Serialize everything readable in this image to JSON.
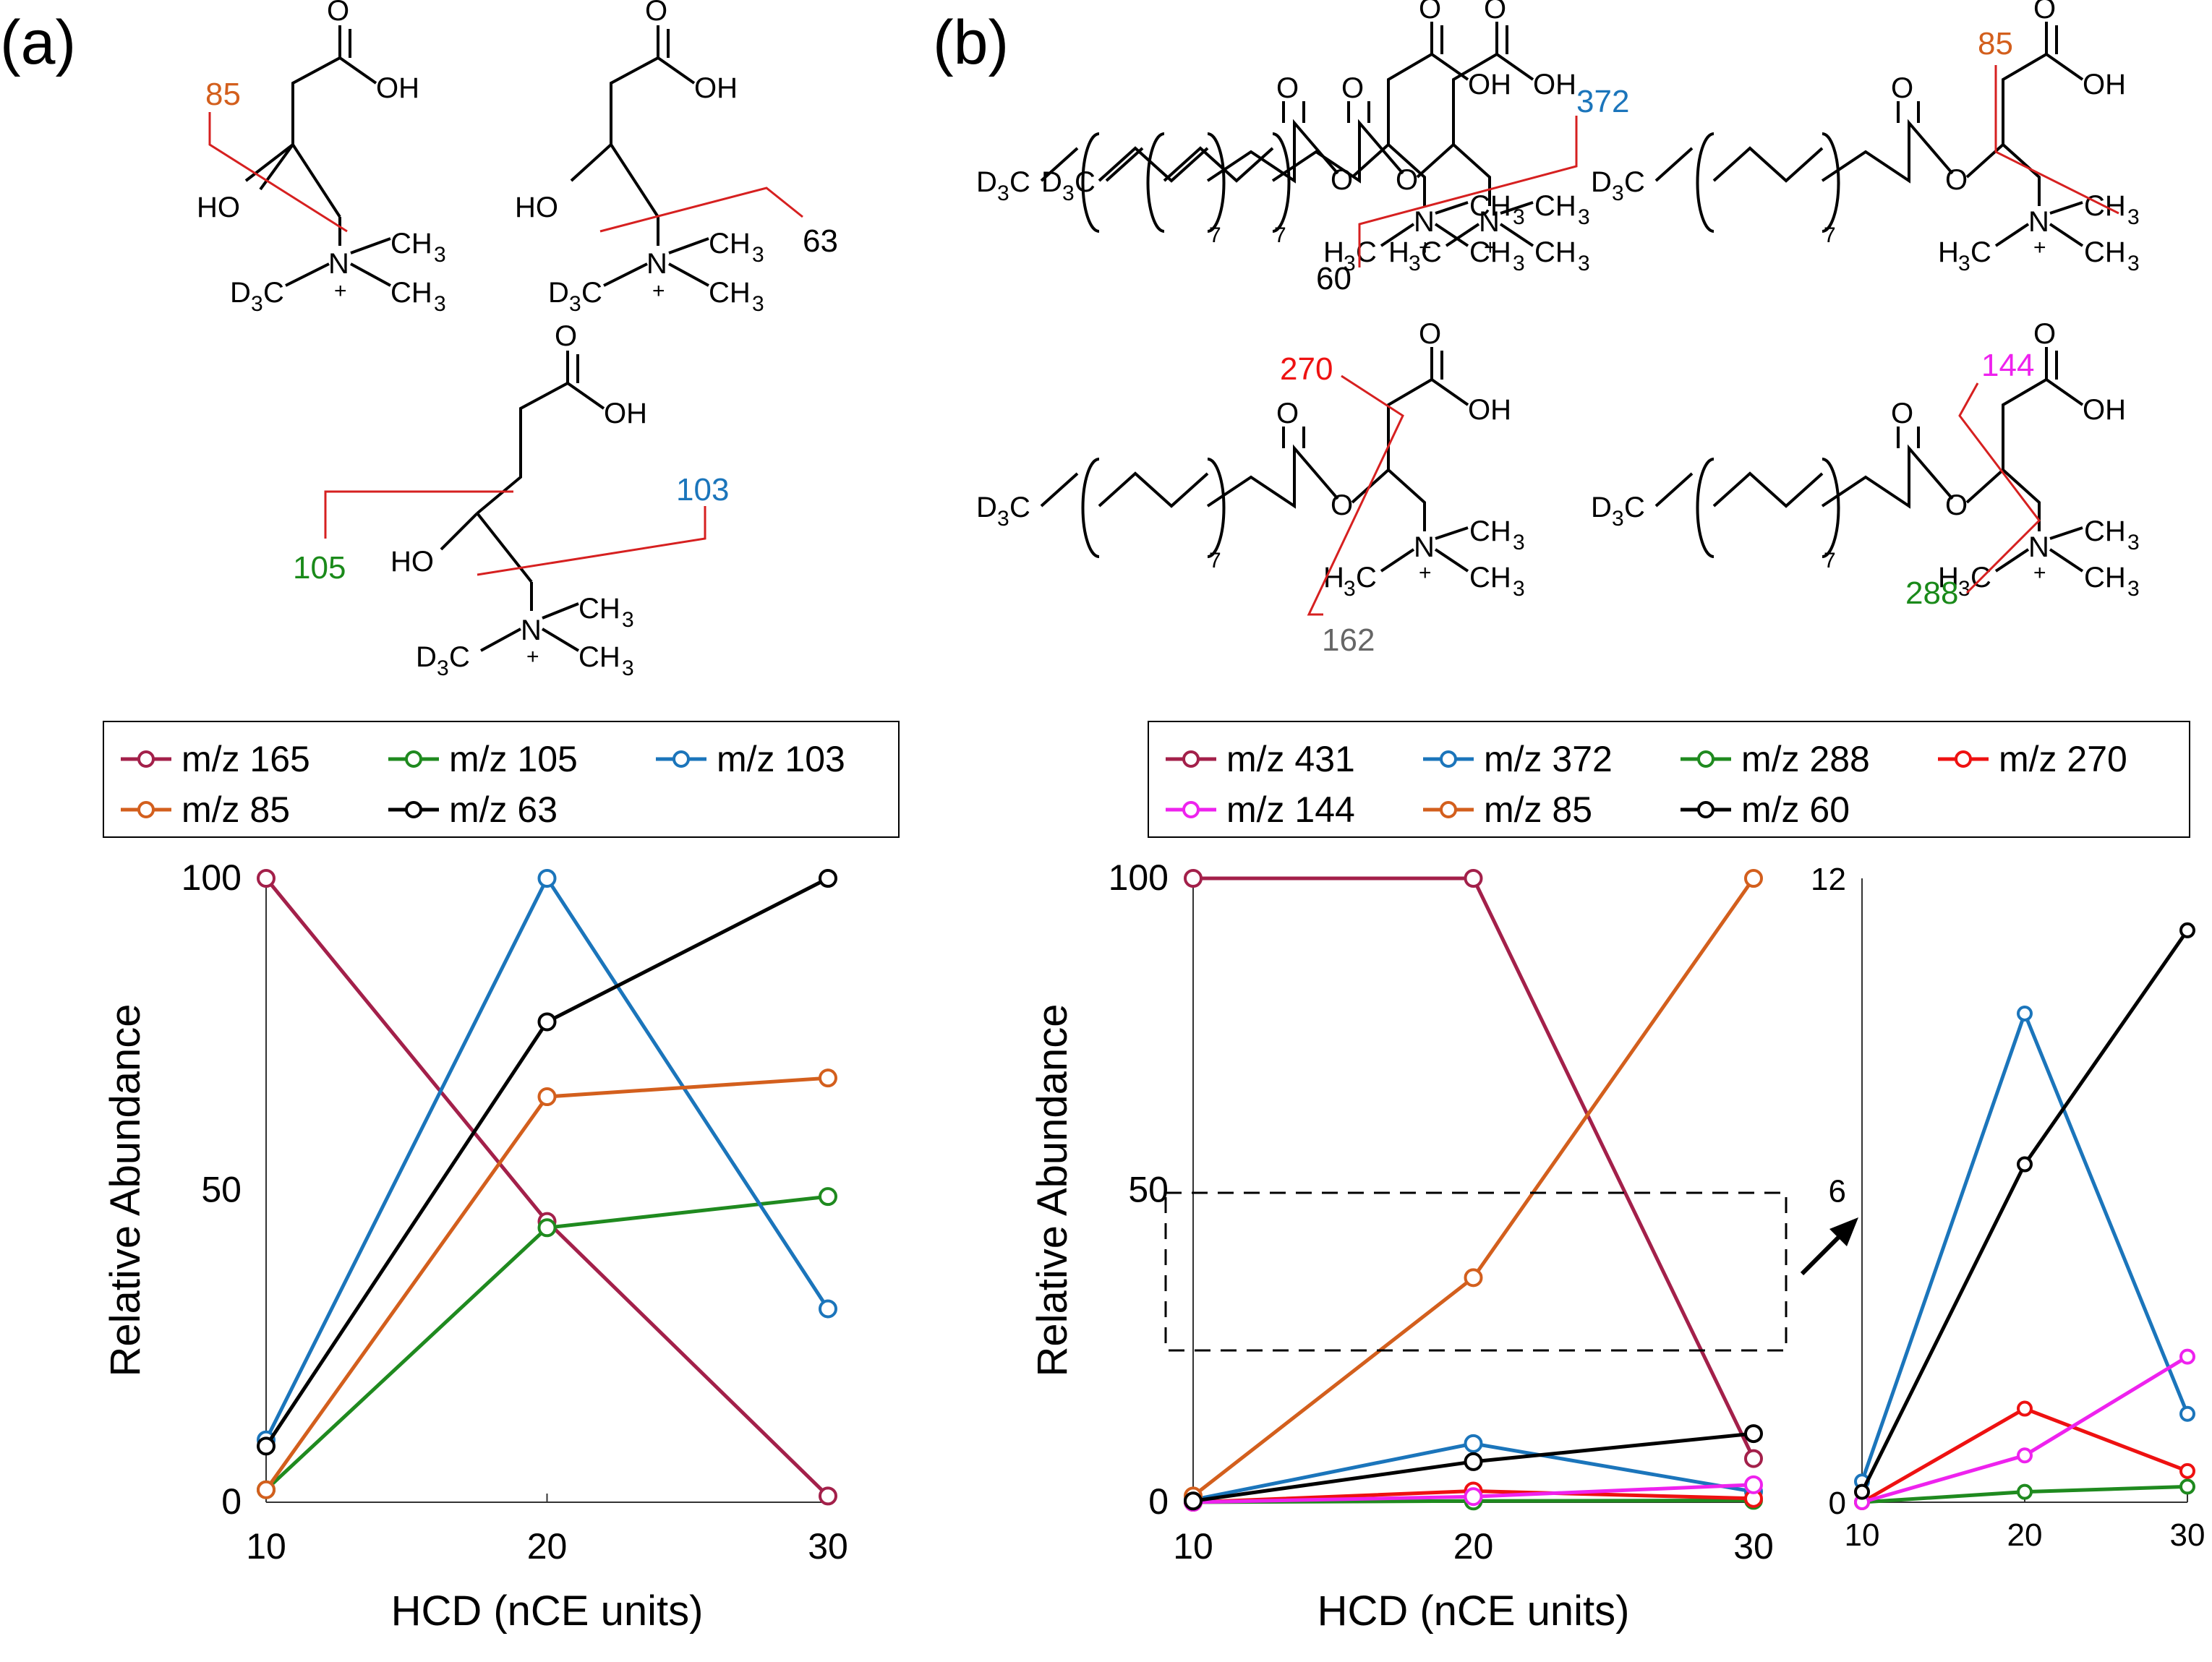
{
  "panels": {
    "a": {
      "label": "(a)"
    },
    "b": {
      "label": "(b)"
    }
  },
  "structures": {
    "chem_labels": {
      "oh": "OH",
      "ho": "HO",
      "o": "O",
      "n": "N",
      "plus": "+",
      "ch3": "CH",
      "h3c": "H",
      "d3c": "D",
      "sub3": "3",
      "c": "C",
      "sub7": "7"
    },
    "fragments_a": [
      {
        "label": "85",
        "color": "#d35f1d"
      },
      {
        "label": "63",
        "color": "#000000"
      },
      {
        "label": "105",
        "color": "#1a8a1a"
      },
      {
        "label": "103",
        "color": "#1b75bb"
      }
    ],
    "fragments_b": [
      {
        "label": "372",
        "color": "#1b75bb"
      },
      {
        "label": "60",
        "color": "#000000"
      },
      {
        "label": "85",
        "color": "#d35f1d"
      },
      {
        "label": "270",
        "color": "#ee1111"
      },
      {
        "label": "162",
        "color": "#666666"
      },
      {
        "label": "144",
        "color": "#ee22ee"
      },
      {
        "label": "288",
        "color": "#1a8a1a"
      }
    ],
    "cleavage_color": "#d62020"
  },
  "chart_data": [
    {
      "type": "line",
      "panel": "a",
      "x": [
        10,
        20,
        30
      ],
      "xlabel": "HCD (nCE units)",
      "ylabel": "Relative Abundance",
      "ylim": [
        0,
        100
      ],
      "xticks": [
        "10",
        "20",
        "30"
      ],
      "yticks": [
        "0",
        "50",
        "100"
      ],
      "legend_position": "top",
      "series": [
        {
          "name": "m/z 165",
          "color": "#a3204a",
          "values": [
            100,
            45,
            1
          ]
        },
        {
          "name": "m/z 105",
          "color": "#1f8a1f",
          "values": [
            2,
            44,
            49
          ]
        },
        {
          "name": "m/z 103",
          "color": "#1b75bb",
          "values": [
            10,
            100,
            31
          ]
        },
        {
          "name": "m/z 85",
          "color": "#d35f1d",
          "values": [
            2,
            65,
            68
          ]
        },
        {
          "name": "m/z 63",
          "color": "#000000",
          "values": [
            9,
            77,
            100
          ]
        }
      ]
    },
    {
      "type": "line",
      "panel": "b",
      "x": [
        10,
        20,
        30
      ],
      "xlabel": "HCD (nCE units)",
      "ylabel": "Relative Abundance",
      "ylim": [
        0,
        100
      ],
      "xticks": [
        "10",
        "20",
        "30"
      ],
      "yticks": [
        "0",
        "50",
        "100"
      ],
      "legend_position": "top",
      "series": [
        {
          "name": "m/z 431",
          "color": "#a3204a",
          "values": [
            100,
            100,
            7
          ]
        },
        {
          "name": "m/z 372",
          "color": "#1b75bb",
          "values": [
            0.4,
            9.4,
            1.7
          ]
        },
        {
          "name": "m/z 288",
          "color": "#1f8a1f",
          "values": [
            0,
            0.2,
            0.3
          ]
        },
        {
          "name": "m/z 270",
          "color": "#ee1111",
          "values": [
            0,
            1.8,
            0.6
          ]
        },
        {
          "name": "m/z 144",
          "color": "#ee22ee",
          "values": [
            0,
            0.9,
            2.8
          ]
        },
        {
          "name": "m/z 85",
          "color": "#d35f1d",
          "values": [
            1,
            36,
            100
          ]
        },
        {
          "name": "m/z 60",
          "color": "#000000",
          "values": [
            0.2,
            6.5,
            11
          ]
        }
      ]
    },
    {
      "type": "line",
      "panel": "b-inset",
      "x": [
        10,
        20,
        30
      ],
      "ylim": [
        0,
        12
      ],
      "xticks": [
        "10",
        "20",
        "30"
      ],
      "yticks": [
        "0",
        "6",
        "12"
      ],
      "series": [
        {
          "name": "m/z 372",
          "color": "#1b75bb",
          "values": [
            0.4,
            9.4,
            1.7
          ]
        },
        {
          "name": "m/z 288",
          "color": "#1f8a1f",
          "values": [
            0,
            0.2,
            0.3
          ]
        },
        {
          "name": "m/z 270",
          "color": "#ee1111",
          "values": [
            0,
            1.8,
            0.6
          ]
        },
        {
          "name": "m/z 144",
          "color": "#ee22ee",
          "values": [
            0,
            0.9,
            2.8
          ]
        },
        {
          "name": "m/z 60",
          "color": "#000000",
          "values": [
            0.2,
            6.5,
            11
          ]
        }
      ]
    }
  ]
}
